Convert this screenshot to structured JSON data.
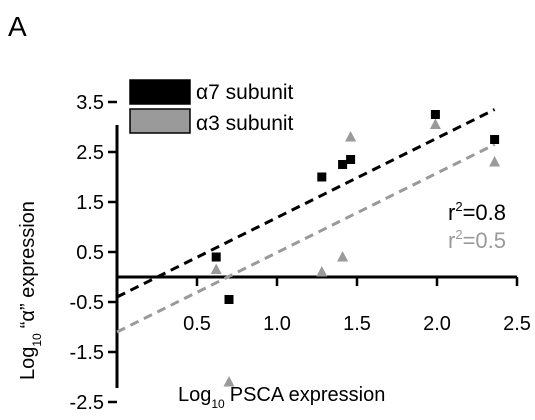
{
  "panel_label": "A",
  "chart_data": {
    "type": "scatter",
    "x_label": {
      "main": "Log",
      "sub": "10",
      "rest": "PSCA expression"
    },
    "y_label": {
      "main": "Log",
      "sub": "10",
      "rest": "“α” expression"
    },
    "xlim": [
      0,
      2.5
    ],
    "ylim": [
      -2.5,
      3.5
    ],
    "x_ticks": [
      {
        "value": 0.5,
        "label": "0.5"
      },
      {
        "value": 1.0,
        "label": "1.0"
      },
      {
        "value": 1.5,
        "label": "1.5"
      },
      {
        "value": 2.0,
        "label": "2.0"
      },
      {
        "value": 2.5,
        "label": "2.5"
      }
    ],
    "y_ticks": [
      {
        "value": 3.5,
        "label": "3.5"
      },
      {
        "value": 2.5,
        "label": "2.5"
      },
      {
        "value": 1.5,
        "label": "1.5"
      },
      {
        "value": 0.5,
        "label": "0.5"
      },
      {
        "value": -0.5,
        "label": "-0.5"
      },
      {
        "value": -1.5,
        "label": "-1.5"
      },
      {
        "value": -2.5,
        "label": "-2.5"
      }
    ],
    "grid": false,
    "legend_position": "top-left",
    "series": [
      {
        "name": "α7 subunit",
        "marker": "square",
        "color": "#000000",
        "points": [
          {
            "x": 0.62,
            "y": 0.4
          },
          {
            "x": 0.7,
            "y": -0.45
          },
          {
            "x": 1.28,
            "y": 2.0
          },
          {
            "x": 1.41,
            "y": 2.25
          },
          {
            "x": 1.46,
            "y": 2.35
          },
          {
            "x": 1.99,
            "y": 3.25
          },
          {
            "x": 2.36,
            "y": 2.75
          }
        ],
        "fit": {
          "x1": 0.0,
          "y1": -0.4,
          "x2": 2.36,
          "y2": 3.35,
          "line_color": "#000000"
        },
        "r2_label": {
          "r": "r",
          "sup": "2",
          "rest": "=0.8",
          "color": "#000000"
        }
      },
      {
        "name": "α3 subunit",
        "marker": "triangle",
        "color": "#9a9a9a",
        "points": [
          {
            "x": 0.62,
            "y": 0.15
          },
          {
            "x": 0.7,
            "y": -2.1
          },
          {
            "x": 1.28,
            "y": 0.1
          },
          {
            "x": 1.41,
            "y": 0.4
          },
          {
            "x": 1.46,
            "y": 2.8
          },
          {
            "x": 1.99,
            "y": 3.05
          },
          {
            "x": 2.36,
            "y": 2.3
          }
        ],
        "fit": {
          "x1": 0.0,
          "y1": -1.1,
          "x2": 2.36,
          "y2": 2.65,
          "line_color": "#9a9a9a"
        },
        "r2_label": {
          "r": "r",
          "sup": "2",
          "rest": "=0.5",
          "color": "#9a9a9a"
        }
      }
    ]
  }
}
